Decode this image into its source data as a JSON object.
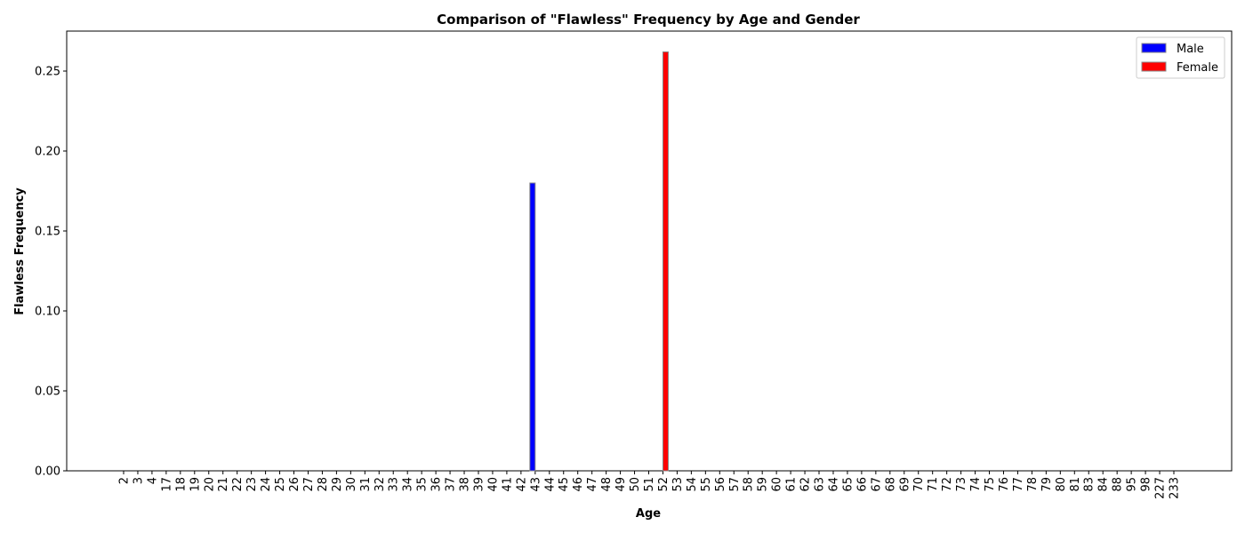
{
  "chart_data": {
    "type": "bar",
    "title": "Comparison of \"Flawless\" Frequency by Age and Gender",
    "xlabel": "Age",
    "ylabel": "Flawless Frequency",
    "ylim": [
      0,
      0.275
    ],
    "yticks": [
      "0.00",
      "0.05",
      "0.10",
      "0.15",
      "0.20",
      "0.25"
    ],
    "grid": false,
    "legend_position": "top-right",
    "categories": [
      "2",
      "3",
      "4",
      "17",
      "18",
      "19",
      "20",
      "21",
      "22",
      "23",
      "24",
      "25",
      "26",
      "27",
      "28",
      "29",
      "30",
      "31",
      "32",
      "33",
      "34",
      "35",
      "36",
      "37",
      "38",
      "39",
      "40",
      "41",
      "42",
      "43",
      "44",
      "45",
      "46",
      "47",
      "48",
      "49",
      "50",
      "51",
      "52",
      "53",
      "54",
      "55",
      "56",
      "57",
      "58",
      "59",
      "60",
      "61",
      "62",
      "63",
      "64",
      "65",
      "66",
      "67",
      "68",
      "69",
      "70",
      "71",
      "72",
      "73",
      "74",
      "75",
      "76",
      "77",
      "78",
      "79",
      "80",
      "81",
      "83",
      "84",
      "88",
      "95",
      "98",
      "227",
      "233"
    ],
    "series": [
      {
        "name": "Male",
        "color": "#0000ff",
        "values": [
          0,
          0,
          0,
          0,
          0,
          0,
          0,
          0,
          0,
          0,
          0,
          0,
          0,
          0,
          0,
          0,
          0,
          0,
          0,
          0,
          0,
          0,
          0,
          0,
          0,
          0,
          0,
          0,
          0,
          0.18,
          0,
          0,
          0,
          0,
          0,
          0,
          0,
          0,
          0,
          0,
          0,
          0,
          0,
          0,
          0,
          0,
          0,
          0,
          0,
          0,
          0,
          0,
          0,
          0,
          0,
          0,
          0,
          0,
          0,
          0,
          0,
          0,
          0,
          0,
          0,
          0,
          0,
          0,
          0,
          0,
          0,
          0,
          0,
          0,
          0
        ]
      },
      {
        "name": "Female",
        "color": "#ff0000",
        "values": [
          0,
          0,
          0,
          0,
          0,
          0,
          0,
          0,
          0,
          0,
          0,
          0,
          0,
          0,
          0,
          0,
          0,
          0,
          0,
          0,
          0,
          0,
          0,
          0,
          0,
          0,
          0,
          0,
          0,
          0,
          0,
          0,
          0,
          0,
          0,
          0,
          0,
          0,
          0.262,
          0,
          0,
          0,
          0,
          0,
          0,
          0,
          0,
          0,
          0,
          0,
          0,
          0,
          0,
          0,
          0,
          0,
          0,
          0,
          0,
          0,
          0,
          0,
          0,
          0,
          0,
          0,
          0,
          0,
          0,
          0,
          0,
          0,
          0,
          0,
          0
        ]
      }
    ]
  }
}
